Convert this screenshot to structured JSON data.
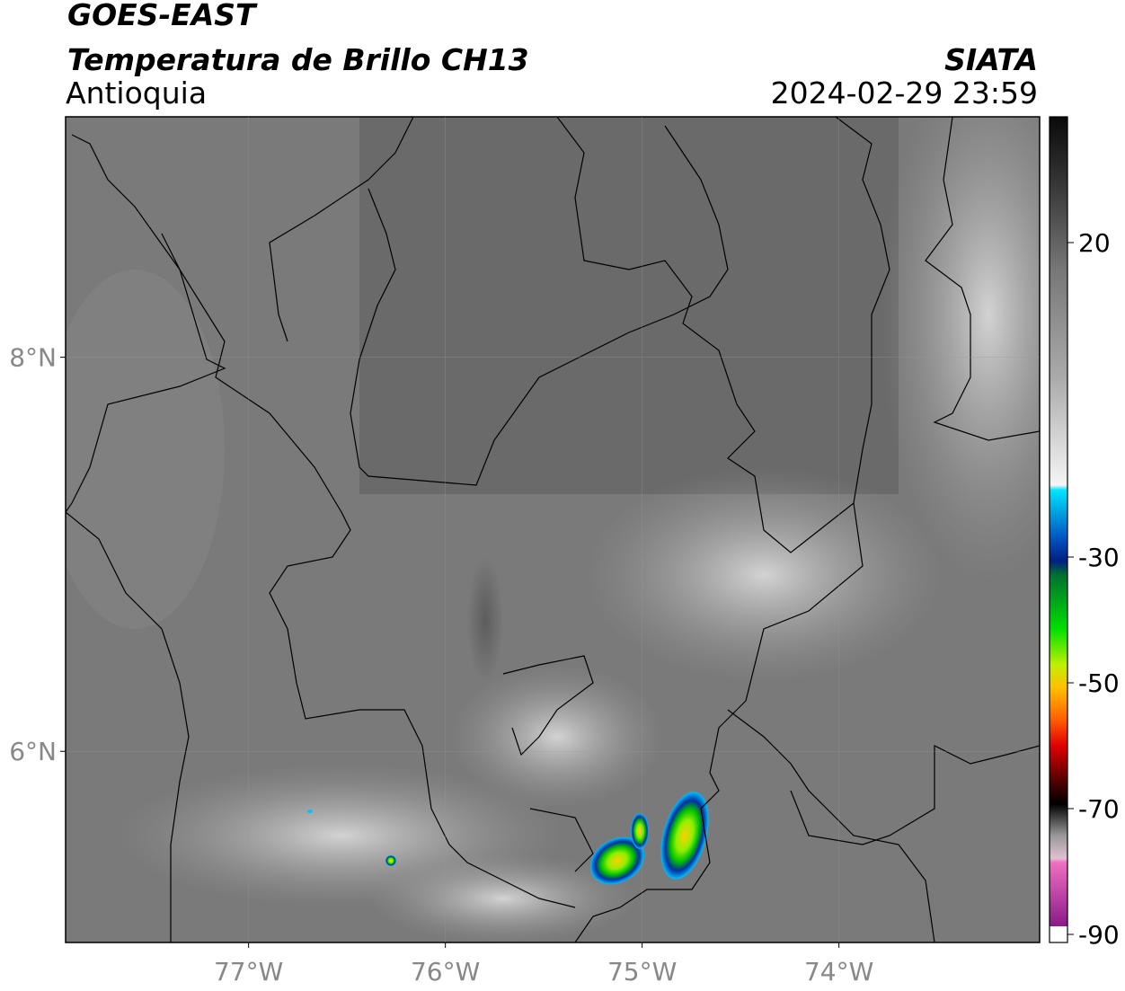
{
  "header": {
    "title": "GOES-EAST",
    "subtitle": "Temperatura de Brillo CH13",
    "region": "Antioquia",
    "source": "SIATA",
    "datetime": "2024-02-29 23:59"
  },
  "map": {
    "xlim": [
      -77.93,
      -72.98
    ],
    "ylim": [
      5.03,
      9.22
    ],
    "xticks": [
      {
        "value": -77,
        "label": "77°W"
      },
      {
        "value": -76,
        "label": "76°W"
      },
      {
        "value": -75,
        "label": "75°W"
      },
      {
        "value": -74,
        "label": "74°W"
      }
    ],
    "yticks": [
      {
        "value": 8,
        "label": "8°N"
      },
      {
        "value": 6,
        "label": "6°N"
      }
    ],
    "grid": true
  },
  "colorbar": {
    "lim": [
      -90,
      40
    ],
    "ticks": [
      20,
      -30,
      -50,
      -70,
      -90
    ]
  }
}
